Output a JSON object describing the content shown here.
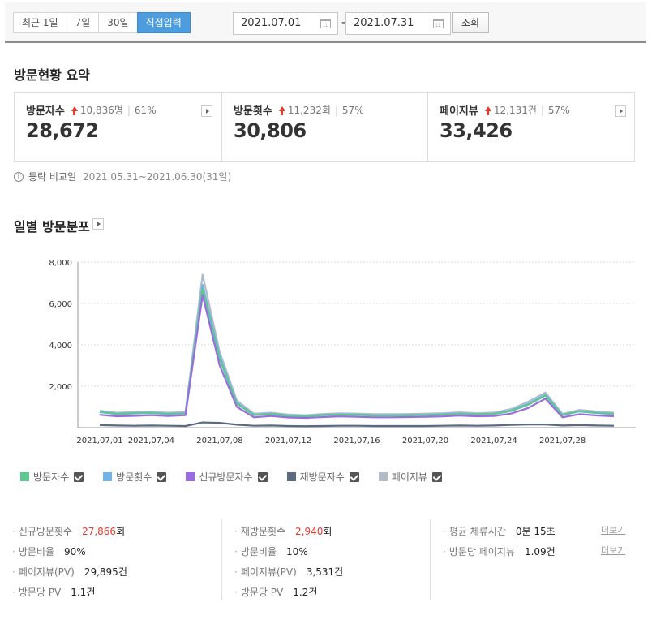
{
  "period": {
    "options": [
      "최근 1일",
      "7일",
      "30일",
      "직접입력"
    ],
    "active": "직접입력"
  },
  "dates": {
    "start": "2021.07.01",
    "separator": "-",
    "end": "2021.07.31",
    "query_label": "조회"
  },
  "summary": {
    "title": "방문현황 요약",
    "cards": [
      {
        "label": "방문자수",
        "diff": "10,836명",
        "pct": "61%",
        "value": "28,672"
      },
      {
        "label": "방문횟수",
        "diff": "11,232회",
        "pct": "57%",
        "value": "30,806"
      },
      {
        "label": "페이지뷰",
        "diff": "12,131건",
        "pct": "57%",
        "value": "33,426"
      }
    ],
    "compare_label": "등락 비교일",
    "compare_range": "2021.05.31~2021.06.30(31일)"
  },
  "daily": {
    "title": "일별 방문분포"
  },
  "colors": {
    "visitors": "#5cc990",
    "visits": "#6fb3e8",
    "new_visitors": "#9b6be0",
    "returning": "#5a6a80",
    "pageviews": "#b2bcc6",
    "accent": "#4c9cde",
    "up": "#e8382c"
  },
  "chart_data": {
    "type": "line",
    "x": [
      "2021.07.01",
      "2021.07.02",
      "2021.07.03",
      "2021.07.04",
      "2021.07.05",
      "2021.07.06",
      "2021.07.07",
      "2021.07.08",
      "2021.07.09",
      "2021.07.10",
      "2021.07.11",
      "2021.07.12",
      "2021.07.13",
      "2021.07.14",
      "2021.07.15",
      "2021.07.16",
      "2021.07.17",
      "2021.07.18",
      "2021.07.19",
      "2021.07.20",
      "2021.07.21",
      "2021.07.22",
      "2021.07.23",
      "2021.07.24",
      "2021.07.25",
      "2021.07.26",
      "2021.07.27",
      "2021.07.28",
      "2021.07.29",
      "2021.07.30",
      "2021.07.31"
    ],
    "x_tick_labels": [
      "2021,07,01",
      "2021,07,04",
      "2021,07,08",
      "2021,07,12",
      "2021,07,16",
      "2021,07,20",
      "2021,07,24",
      "2021,07,28"
    ],
    "x_tick_index": [
      0,
      3,
      7,
      11,
      15,
      19,
      23,
      27
    ],
    "y_ticks": [
      "2,000",
      "4,000",
      "6,000",
      "8,000"
    ],
    "y_tick_values": [
      2000,
      4000,
      6000,
      8000
    ],
    "ylim": [
      0,
      8000
    ],
    "grid": true,
    "series": [
      {
        "name": "방문자수",
        "color": "#5cc990",
        "values": [
          750,
          650,
          680,
          700,
          650,
          680,
          6700,
          3300,
          1150,
          600,
          650,
          570,
          550,
          600,
          620,
          610,
          580,
          580,
          590,
          600,
          620,
          660,
          630,
          650,
          800,
          1100,
          1550,
          600,
          780,
          700,
          650
        ]
      },
      {
        "name": "방문횟수",
        "color": "#6fb3e8",
        "values": [
          780,
          680,
          710,
          720,
          680,
          700,
          6900,
          3450,
          1200,
          620,
          680,
          590,
          570,
          620,
          640,
          630,
          600,
          600,
          610,
          620,
          650,
          680,
          650,
          670,
          830,
          1150,
          1600,
          620,
          800,
          720,
          670
        ]
      },
      {
        "name": "신규방문자수",
        "color": "#9b6be0",
        "values": [
          620,
          550,
          570,
          600,
          560,
          600,
          6400,
          3000,
          1000,
          500,
          560,
          490,
          470,
          510,
          540,
          520,
          500,
          500,
          510,
          520,
          540,
          580,
          550,
          560,
          680,
          950,
          1400,
          500,
          650,
          590,
          550
        ]
      },
      {
        "name": "재방문자수",
        "color": "#5a6a80",
        "values": [
          120,
          100,
          90,
          100,
          90,
          80,
          250,
          230,
          140,
          90,
          100,
          80,
          70,
          80,
          90,
          90,
          80,
          80,
          80,
          80,
          90,
          100,
          90,
          100,
          130,
          150,
          150,
          100,
          120,
          100,
          90
        ]
      },
      {
        "name": "페이지뷰",
        "color": "#b2bcc6",
        "values": [
          820,
          720,
          750,
          770,
          720,
          750,
          7400,
          3650,
          1300,
          680,
          720,
          630,
          600,
          660,
          690,
          680,
          650,
          650,
          660,
          680,
          700,
          740,
          700,
          730,
          900,
          1250,
          1700,
          660,
          860,
          780,
          720
        ]
      }
    ]
  },
  "legend": [
    {
      "label": "방문자수",
      "color": "#5cc990"
    },
    {
      "label": "방문횟수",
      "color": "#6fb3e8"
    },
    {
      "label": "신규방문자수",
      "color": "#9b6be0"
    },
    {
      "label": "재방문자수",
      "color": "#5a6a80"
    },
    {
      "label": "페이지뷰",
      "color": "#b2bcc6"
    }
  ],
  "stats": {
    "col1": [
      {
        "label": "신규방문횟수",
        "value": "27,866",
        "unit": "회",
        "highlight": true
      },
      {
        "label": "방문비율",
        "value": "90%",
        "unit": ""
      },
      {
        "label": "페이지뷰(PV)",
        "value": "29,895",
        "unit": "건"
      },
      {
        "label": "방문당 PV",
        "value": "1.1",
        "unit": "건"
      }
    ],
    "col2": [
      {
        "label": "재방문횟수",
        "value": "2,940",
        "unit": "회",
        "highlight": true
      },
      {
        "label": "방문비율",
        "value": "10%",
        "unit": ""
      },
      {
        "label": "페이지뷰(PV)",
        "value": "3,531",
        "unit": "건"
      },
      {
        "label": "방문당 PV",
        "value": "1.2",
        "unit": "건"
      }
    ],
    "col3": [
      {
        "label": "평균 체류시간",
        "value": "0분 15초",
        "unit": ""
      },
      {
        "label": "방문당 페이지뷰",
        "value": "1.09",
        "unit": "건"
      }
    ],
    "more_label": "더보기"
  }
}
